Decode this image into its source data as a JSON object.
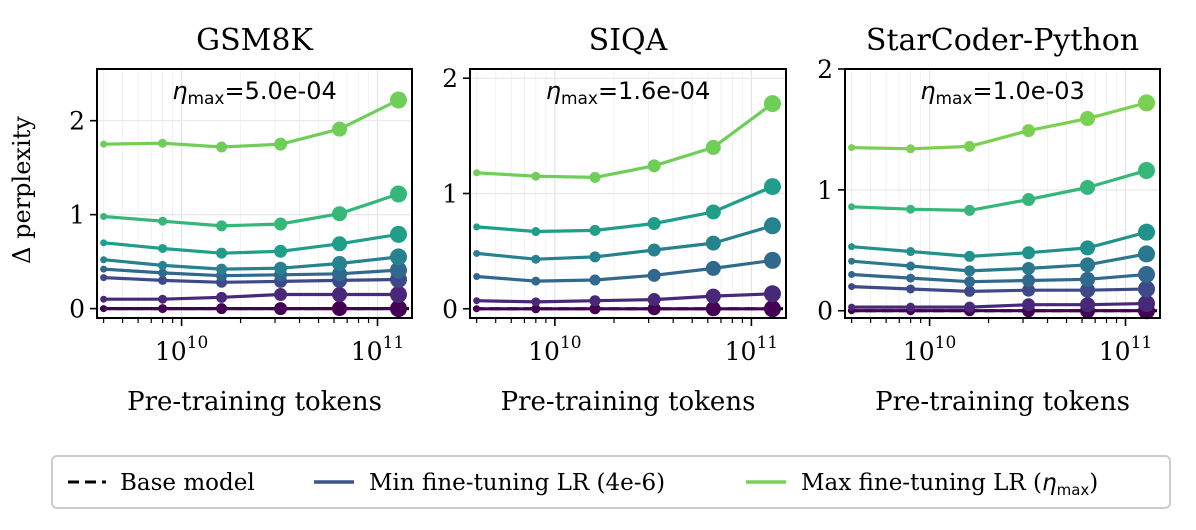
{
  "ylabel": "Δ perplexity",
  "x_ticks": [
    {
      "value": 10000000000,
      "base": "10",
      "exp": "10"
    },
    {
      "value": 100000000000,
      "base": "10",
      "exp": "11"
    }
  ],
  "legend": {
    "base_label": "Base model",
    "min_label": "Min fine-tuning LR (4e-6)",
    "max_label_prefix": "Max fine-tuning LR (",
    "max_label_symbol": "η",
    "max_label_sub": "max",
    "max_label_suffix": ")",
    "min_color": "#3b528b",
    "max_color": "#7ad151",
    "base_color": "#000000"
  },
  "chart_data": [
    {
      "type": "line",
      "title": "GSM8K",
      "annotation": {
        "symbol": "η",
        "sub": "max",
        "text": "=5.0e-04"
      },
      "xlabel": "Pre-training tokens",
      "ylabel": "Δ perplexity",
      "xscale": "log",
      "xlim": [
        3700000000,
        150000000000
      ],
      "ylim": [
        -0.1,
        2.55
      ],
      "yticks": [
        0,
        1,
        2
      ],
      "x": [
        4000000000,
        8000000000,
        16000000000,
        32000000000,
        64000000000,
        128000000000
      ],
      "series": [
        {
          "name": "base",
          "values": [
            0,
            0,
            0,
            0,
            0,
            0
          ]
        },
        {
          "name": "lr1",
          "color": "#440154",
          "values": [
            0.0,
            0.0,
            0.0,
            0.0,
            0.0,
            0.0
          ]
        },
        {
          "name": "lr2",
          "color": "#482878",
          "values": [
            0.1,
            0.1,
            0.12,
            0.15,
            0.15,
            0.15
          ]
        },
        {
          "name": "lr3",
          "color": "#3e4989",
          "values": [
            0.33,
            0.3,
            0.28,
            0.29,
            0.3,
            0.31
          ]
        },
        {
          "name": "lr4",
          "color": "#31688e",
          "values": [
            0.42,
            0.38,
            0.35,
            0.36,
            0.37,
            0.41
          ]
        },
        {
          "name": "lr5",
          "color": "#26828e",
          "values": [
            0.52,
            0.46,
            0.42,
            0.43,
            0.48,
            0.55
          ]
        },
        {
          "name": "lr6",
          "color": "#1f9e89",
          "values": [
            0.7,
            0.64,
            0.59,
            0.61,
            0.69,
            0.79
          ]
        },
        {
          "name": "lr7",
          "color": "#35b779",
          "values": [
            0.98,
            0.93,
            0.88,
            0.9,
            1.01,
            1.22
          ]
        },
        {
          "name": "lr8",
          "color": "#6ece58",
          "values": [
            1.75,
            1.76,
            1.72,
            1.75,
            1.91,
            2.22
          ]
        }
      ]
    },
    {
      "type": "line",
      "title": "SIQA",
      "annotation": {
        "symbol": "η",
        "sub": "max",
        "text": "=1.6e-04"
      },
      "xlabel": "Pre-training tokens",
      "ylabel": "",
      "xscale": "log",
      "xlim": [
        3700000000,
        150000000000
      ],
      "ylim": [
        -0.08,
        2.08
      ],
      "yticks": [
        0,
        1,
        2
      ],
      "x": [
        4000000000,
        8000000000,
        16000000000,
        32000000000,
        64000000000,
        128000000000
      ],
      "series": [
        {
          "name": "base",
          "values": [
            0,
            0,
            0,
            0,
            0,
            0
          ]
        },
        {
          "name": "lr1",
          "color": "#440154",
          "values": [
            0.0,
            0.0,
            0.0,
            0.0,
            0.0,
            0.0
          ]
        },
        {
          "name": "lr2",
          "color": "#482878",
          "values": [
            0.07,
            0.06,
            0.07,
            0.08,
            0.11,
            0.13
          ]
        },
        {
          "name": "lr3",
          "color": "#31688e",
          "values": [
            0.28,
            0.24,
            0.25,
            0.29,
            0.35,
            0.42
          ]
        },
        {
          "name": "lr4",
          "color": "#26828e",
          "values": [
            0.48,
            0.43,
            0.45,
            0.51,
            0.57,
            0.72
          ]
        },
        {
          "name": "lr5",
          "color": "#1f9e89",
          "values": [
            0.71,
            0.67,
            0.68,
            0.74,
            0.84,
            1.06
          ]
        },
        {
          "name": "lr6",
          "color": "#6ece58",
          "values": [
            1.18,
            1.15,
            1.14,
            1.24,
            1.4,
            1.78
          ]
        }
      ]
    },
    {
      "type": "line",
      "title": "StarCoder-Python",
      "annotation": {
        "symbol": "η",
        "sub": "max",
        "text": "=1.0e-03"
      },
      "xlabel": "Pre-training tokens",
      "ylabel": "",
      "xscale": "log",
      "xlim": [
        3700000000,
        150000000000
      ],
      "ylim": [
        -0.06,
        2.0
      ],
      "yticks": [
        0,
        1,
        2
      ],
      "x": [
        4000000000,
        8000000000,
        16000000000,
        32000000000,
        64000000000,
        128000000000
      ],
      "series": [
        {
          "name": "base",
          "values": [
            0,
            0,
            0,
            0,
            0,
            0
          ]
        },
        {
          "name": "lr1",
          "color": "#440154",
          "values": [
            0.0,
            0.0,
            0.0,
            0.0,
            0.0,
            0.0
          ]
        },
        {
          "name": "lr2",
          "color": "#482878",
          "values": [
            0.03,
            0.03,
            0.03,
            0.05,
            0.05,
            0.06
          ]
        },
        {
          "name": "lr3",
          "color": "#3e4989",
          "values": [
            0.2,
            0.18,
            0.16,
            0.17,
            0.17,
            0.18
          ]
        },
        {
          "name": "lr4",
          "color": "#31688e",
          "values": [
            0.3,
            0.27,
            0.24,
            0.25,
            0.26,
            0.3
          ]
        },
        {
          "name": "lr5",
          "color": "#2a788e",
          "values": [
            0.41,
            0.37,
            0.33,
            0.35,
            0.38,
            0.47
          ]
        },
        {
          "name": "lr6",
          "color": "#21918c",
          "values": [
            0.53,
            0.49,
            0.45,
            0.48,
            0.52,
            0.65
          ]
        },
        {
          "name": "lr7",
          "color": "#35b779",
          "values": [
            0.86,
            0.84,
            0.83,
            0.92,
            1.02,
            1.16
          ]
        },
        {
          "name": "lr8",
          "color": "#7ad151",
          "values": [
            1.35,
            1.34,
            1.36,
            1.49,
            1.59,
            1.72
          ]
        }
      ]
    }
  ]
}
